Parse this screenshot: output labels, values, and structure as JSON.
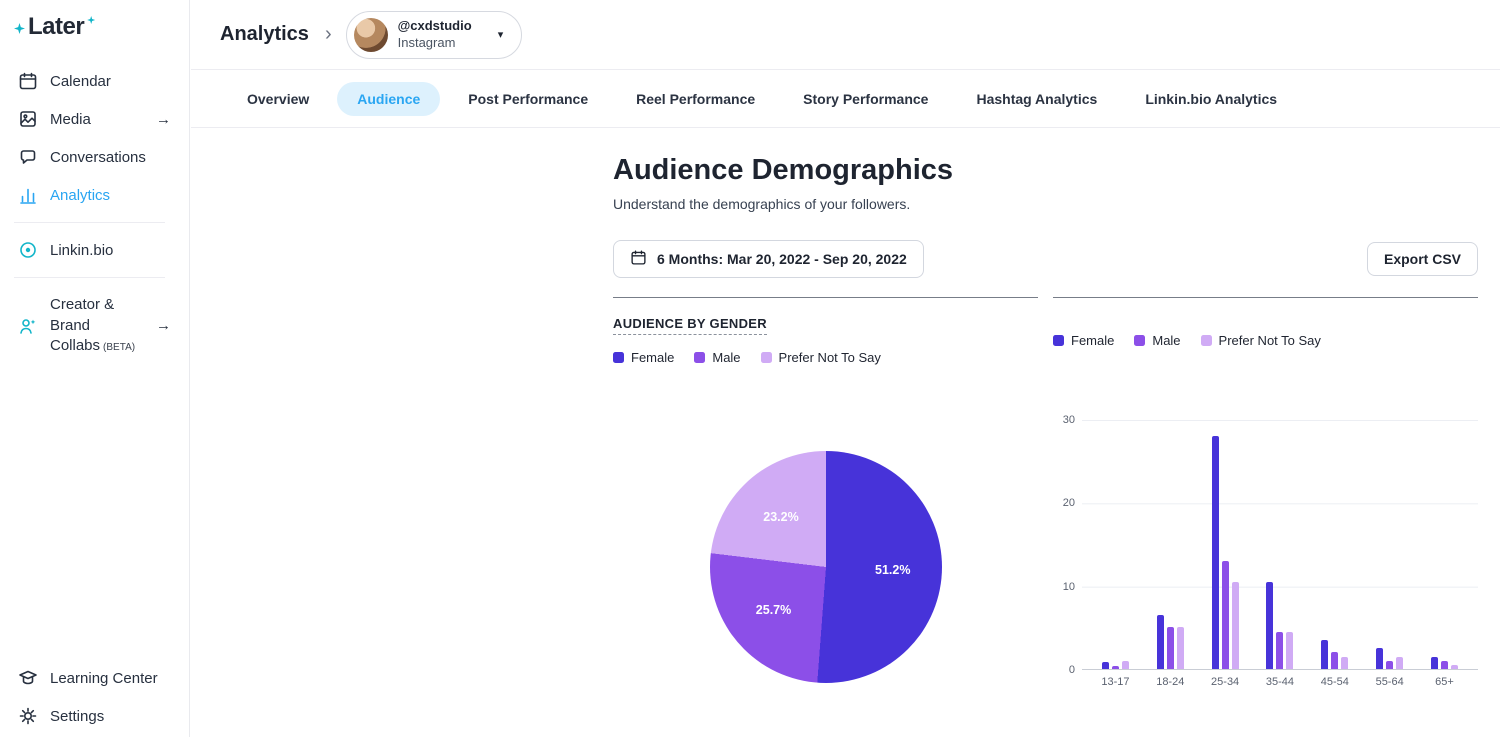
{
  "brand": {
    "logo_text": "Later"
  },
  "icons": {
    "chevron_right": "›",
    "caret_down": "▾",
    "arrow_right": "→"
  },
  "sidebar": {
    "items": [
      {
        "label": "Calendar",
        "icon": "calendar-icon"
      },
      {
        "label": "Media",
        "icon": "media-icon",
        "trailing": "arrow"
      },
      {
        "label": "Conversations",
        "icon": "chat-icon"
      },
      {
        "label": "Analytics",
        "icon": "analytics-icon",
        "active": true
      },
      {
        "label": "Linkin.bio",
        "icon": "linkinbio-icon"
      },
      {
        "label": "Creator & Brand Collabs",
        "beta": "(BETA)",
        "icon": "creator-icon",
        "trailing": "arrow"
      }
    ],
    "footer_items": [
      {
        "label": "Learning Center",
        "icon": "learning-icon"
      },
      {
        "label": "Settings",
        "icon": "gear-icon"
      }
    ]
  },
  "header": {
    "title": "Analytics",
    "account": {
      "handle": "@cxdstudio",
      "platform": "Instagram"
    }
  },
  "tabs": [
    {
      "label": "Overview"
    },
    {
      "label": "Audience",
      "active": true
    },
    {
      "label": "Post Performance"
    },
    {
      "label": "Reel Performance"
    },
    {
      "label": "Story Performance"
    },
    {
      "label": "Hashtag Analytics"
    },
    {
      "label": "Linkin.bio Analytics"
    }
  ],
  "main": {
    "title": "Audience Demographics",
    "subtitle": "Understand the demographics of your followers.",
    "date_range_label": "6 Months: Mar 20, 2022 - Sep 20, 2022",
    "export_label": "Export CSV",
    "gender_section_title": "AUDIENCE BY GENDER"
  },
  "colors": {
    "accent_blue": "#2aa6f2",
    "active_tab_bg": "#ddf1fd",
    "female": "#4733D9",
    "male": "#8C4FE8",
    "prefer_not_to_say": "#D0ABF5",
    "teal": "#12b5c9"
  },
  "chart_data": [
    {
      "type": "pie",
      "title": "Audience By Gender",
      "labels": [
        "Female",
        "Male",
        "Prefer Not To Say"
      ],
      "values": [
        51.2,
        25.7,
        23.2
      ],
      "value_labels": [
        "51.2%",
        "25.7%",
        "23.2%"
      ],
      "colors": [
        "#4733D9",
        "#8C4FE8",
        "#D0ABF5"
      ]
    },
    {
      "type": "bar",
      "title": "Audience By Age And Gender",
      "categories": [
        "13-17",
        "18-24",
        "25-34",
        "35-44",
        "45-54",
        "55-64",
        "65+"
      ],
      "series": [
        {
          "name": "Female",
          "color": "#4733D9",
          "values": [
            0.8,
            6.5,
            28,
            10.5,
            3.5,
            2.5,
            1.5
          ]
        },
        {
          "name": "Male",
          "color": "#8C4FE8",
          "values": [
            0.4,
            5,
            13,
            4.5,
            2,
            1,
            1
          ]
        },
        {
          "name": "Prefer Not To Say",
          "color": "#D0ABF5",
          "values": [
            1,
            5,
            10.5,
            4.5,
            1.5,
            1.5,
            0.5
          ]
        }
      ],
      "ylim": [
        0,
        30
      ],
      "yticks": [
        0,
        10,
        20,
        30
      ],
      "legend_position": "top",
      "grid": true
    }
  ]
}
